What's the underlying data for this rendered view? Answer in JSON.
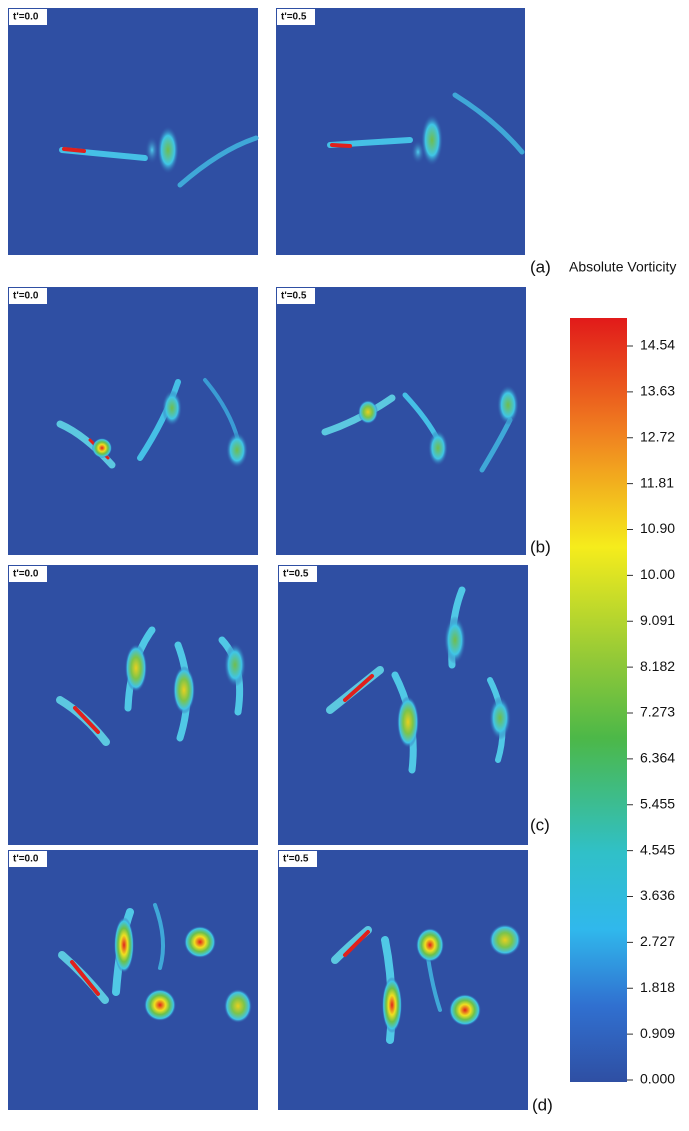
{
  "panels": [
    {
      "label": "(a)",
      "times": [
        "t'=0.0",
        "t'=0.5"
      ]
    },
    {
      "label": "(b)",
      "times": [
        "t'=0.0",
        "t'=0.5"
      ]
    },
    {
      "label": "(c)",
      "times": [
        "t'=0.0",
        "t'=0.5"
      ]
    },
    {
      "label": "(d)",
      "times": [
        "t'=0.0",
        "t'=0.5"
      ]
    }
  ],
  "colorbar": {
    "title": "Absolute Vorticity",
    "labels": [
      "14.54",
      "13.63",
      "12.72",
      "11.81",
      "10.90",
      "10.00",
      "9.091",
      "8.182",
      "7.273",
      "6.364",
      "5.455",
      "4.545",
      "3.636",
      "2.727",
      "1.818",
      "0.909",
      "0.000"
    ]
  }
}
